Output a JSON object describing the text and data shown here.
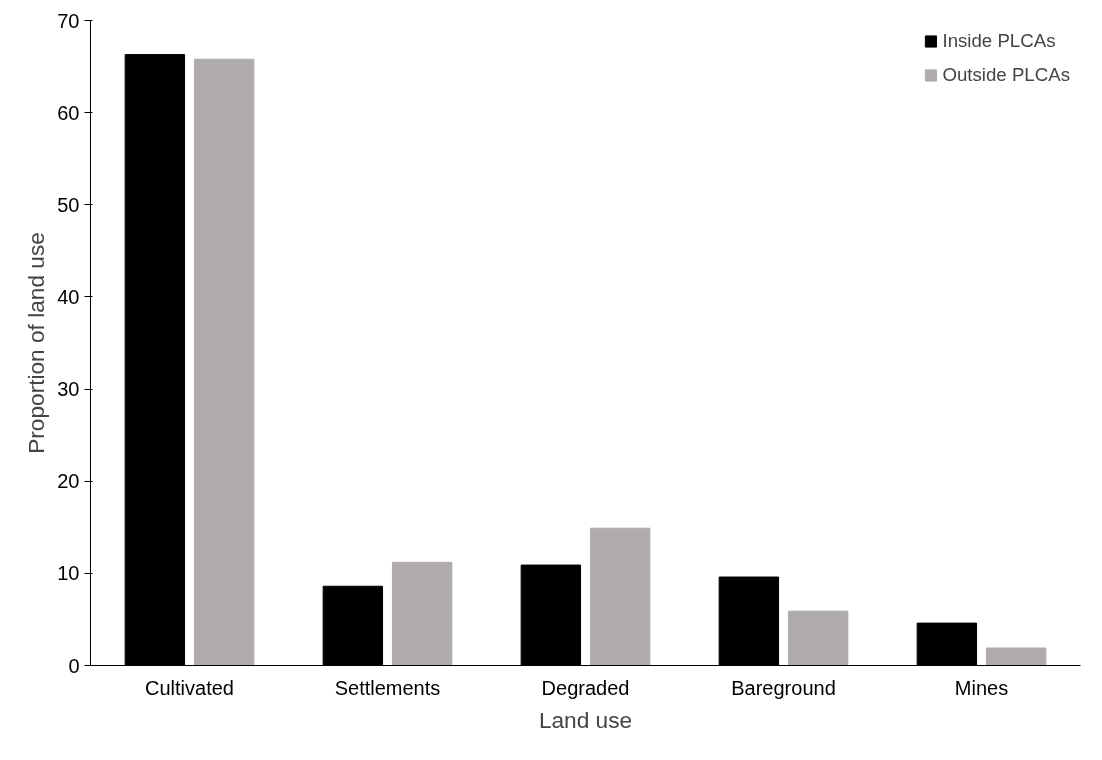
{
  "chart_data": {
    "type": "bar",
    "xlabel": "Land use",
    "ylabel": "Proportion of land use",
    "categories": [
      "Cultivated",
      "Settlements",
      "Degraded",
      "Bareground",
      "Mines"
    ],
    "series": [
      {
        "name": "Inside PLCAs",
        "color": "#000000",
        "values": [
          66.3,
          8.6,
          10.9,
          9.6,
          4.6
        ]
      },
      {
        "name": "Outside PLCAs",
        "color": "#afabab",
        "values": [
          65.8,
          11.2,
          14.9,
          5.9,
          1.9
        ]
      }
    ],
    "ylim": [
      0,
      70
    ],
    "yticks": [
      0,
      10,
      20,
      30,
      40,
      50,
      60,
      70
    ],
    "grid": false,
    "legend": "top right"
  }
}
